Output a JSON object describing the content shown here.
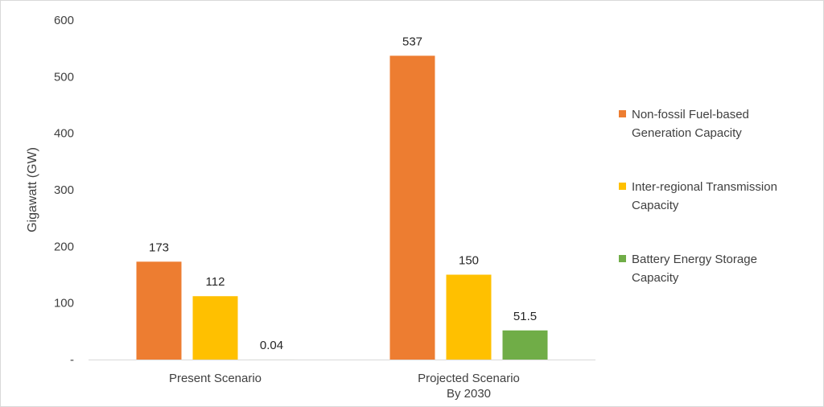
{
  "chart_data": {
    "type": "bar",
    "ylabel": "Gigawatt (GW)",
    "ylim": [
      0,
      600
    ],
    "yticks": [
      {
        "value": 0,
        "label": "-"
      },
      {
        "value": 100,
        "label": "100"
      },
      {
        "value": 200,
        "label": "200"
      },
      {
        "value": 300,
        "label": "300"
      },
      {
        "value": 400,
        "label": "400"
      },
      {
        "value": 500,
        "label": "500"
      },
      {
        "value": 600,
        "label": "600"
      }
    ],
    "categories": [
      [
        "Present Scenario"
      ],
      [
        "Projected Scenario",
        "By 2030"
      ]
    ],
    "series": [
      {
        "name": [
          "Non-fossil Fuel-based",
          "Generation Capacity"
        ],
        "color": "#ed7d31",
        "values": [
          173,
          537
        ],
        "labels": [
          "173",
          "537"
        ]
      },
      {
        "name": [
          "Inter-regional Transmission",
          "Capacity"
        ],
        "color": "#ffc000",
        "values": [
          112,
          150
        ],
        "labels": [
          "112",
          "150"
        ]
      },
      {
        "name": [
          "Battery Energy Storage",
          "Capacity"
        ],
        "color": "#70ad47",
        "values": [
          0.04,
          51.5
        ],
        "labels": [
          "0.04",
          "51.5"
        ]
      }
    ],
    "grid": false,
    "legend": "right"
  }
}
